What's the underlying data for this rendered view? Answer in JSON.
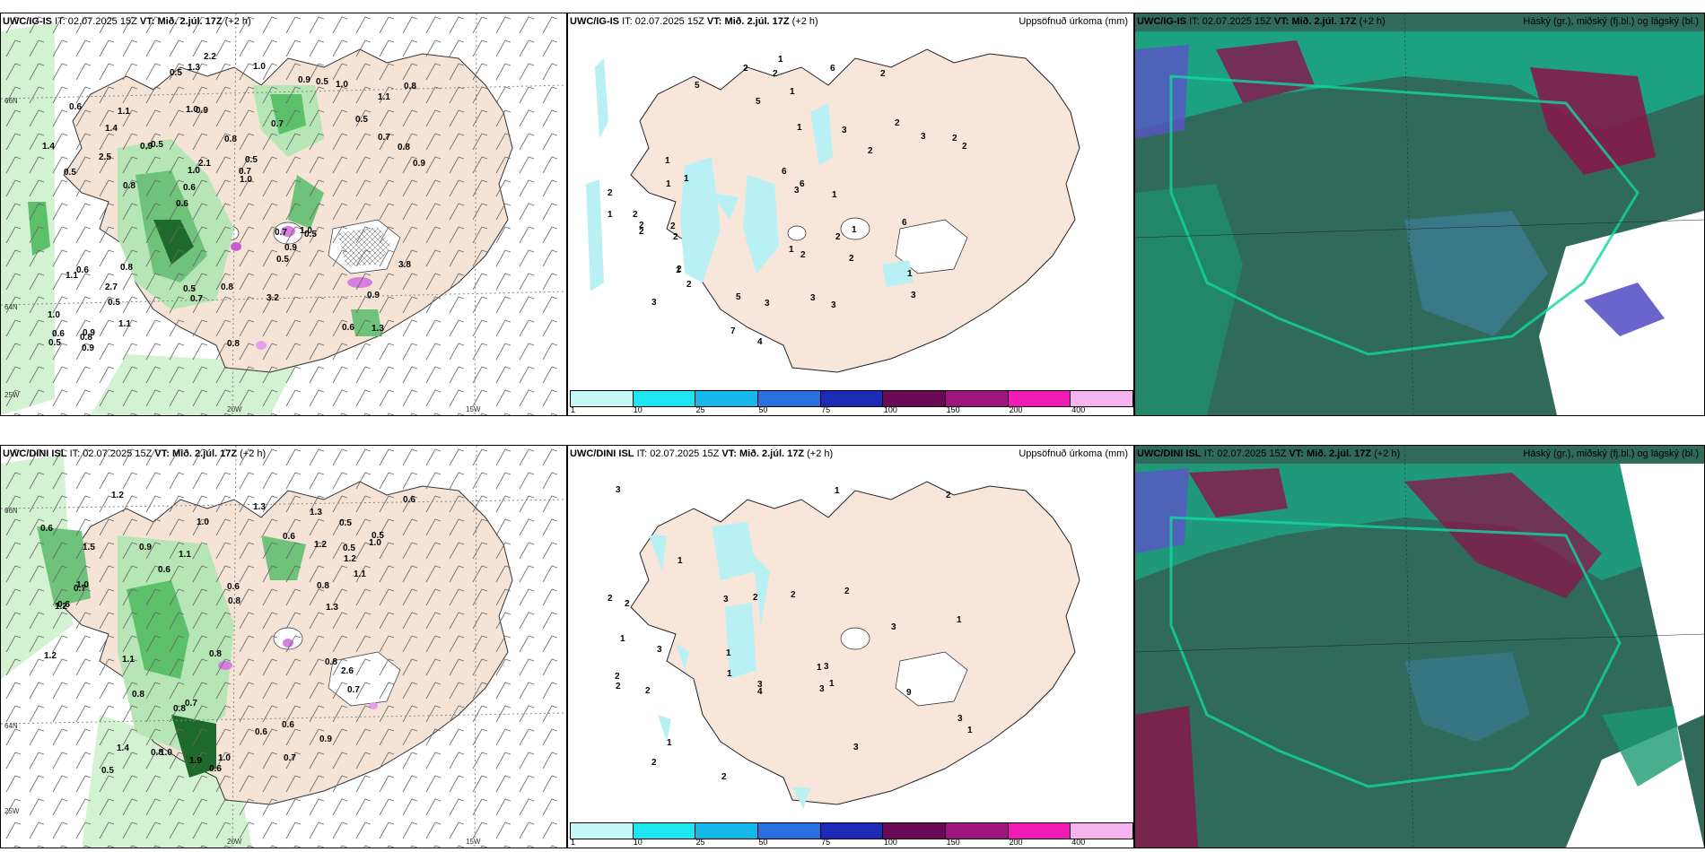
{
  "panels": [
    {
      "row": 0,
      "col": 0,
      "model": "UWC/IG-IS",
      "it_label": "IT:",
      "it_value": "02.07.2025 15Z",
      "vt_label": "VT:",
      "vt_value": "Mið. 2.júl. 17Z",
      "lead": "(+2 h)",
      "title": ""
    },
    {
      "row": 0,
      "col": 1,
      "model": "UWC/IG-IS",
      "it_label": "IT:",
      "it_value": "02.07.2025 15Z",
      "vt_label": "VT:",
      "vt_value": "Mið. 2.júl. 17Z",
      "lead": "(+2 h)",
      "title": "Uppsöfnuð úrkoma (mm)"
    },
    {
      "row": 0,
      "col": 2,
      "model": "UWC/IG-IS",
      "it_label": "IT:",
      "it_value": "02.07.2025 15Z",
      "vt_label": "VT:",
      "vt_value": "Mið. 2.júl. 17Z",
      "lead": "(+2 h)",
      "title": "Háský (gr.), miðský (fj.bl.) og lágský (bl.)"
    },
    {
      "row": 1,
      "col": 0,
      "model": "UWC/DINI ISL",
      "it_label": "IT:",
      "it_value": "02.07.2025 15Z",
      "vt_label": "VT:",
      "vt_value": "Mið. 2.júl. 17Z",
      "lead": "(+2 h)",
      "title": ""
    },
    {
      "row": 1,
      "col": 1,
      "model": "UWC/DINI ISL",
      "it_label": "IT:",
      "it_value": "02.07.2025 15Z",
      "vt_label": "VT:",
      "vt_value": "Mið. 2.júl. 17Z",
      "lead": "(+2 h)",
      "title": "Uppsöfnuð úrkoma (mm)"
    },
    {
      "row": 1,
      "col": 2,
      "model": "UWC/DINI ISL",
      "it_label": "IT:",
      "it_value": "02.07.2025 15Z",
      "vt_label": "VT:",
      "vt_value": "Mið. 2.júl. 17Z",
      "lead": "(+2 h)",
      "title": "Háský (gr.), miðský (fj.bl.) og lágský (bl.)"
    }
  ],
  "axis_labels": {
    "lat_66": "66N",
    "lat_64": "64N",
    "lon_25": "25W",
    "lon_20": "20W",
    "lon_15": "15W"
  },
  "colorbar": {
    "colors": [
      "#c6f7f7",
      "#1ee6f0",
      "#14b9ea",
      "#2a6fe0",
      "#1b2bb8",
      "#6a0a55",
      "#a01480",
      "#f01ab4",
      "#f5b4f0"
    ],
    "ticks": [
      "1",
      "10",
      "25",
      "50",
      "75",
      "100",
      "150",
      "200",
      "400"
    ]
  },
  "map_colors": {
    "land": "#f5e3d6",
    "precip_light": "#c8f0c8",
    "precip_mid": "#5cbf6a",
    "precip_dark": "#1e6a2c",
    "cloud_low": "#2f6a5a",
    "cloud_mid": "#10c89a",
    "cloud_high": "#8a1448"
  },
  "station_values": {
    "wind_row0": [
      "1.3",
      "0.5",
      "1.1",
      "0.6",
      "0.7",
      "0.9",
      "1.0",
      "0.8",
      "0.6",
      "0.5",
      "1.0",
      "0.5",
      "0.9",
      "0.5",
      "0.5",
      "0.6",
      "1.3",
      "0.9",
      "0.7",
      "0.7",
      "0.6",
      "0.5",
      "1.0",
      "1.1",
      "0.9",
      "0.8",
      "0.6",
      "0.9",
      "1.0",
      "0.8",
      "0.9",
      "2.5",
      "0.5",
      "1.1",
      "0.8",
      "0.7",
      "0.6",
      "0.7",
      "1.0",
      "1.1",
      "0.5",
      "0.8",
      "0.9",
      "3.2",
      "2.7",
      "0.9",
      "0.5",
      "0.8",
      "1.0",
      "2.2",
      "0.8",
      "1.4",
      "1.4",
      "0.5",
      "0.8",
      "1.0",
      "0.5",
      "2.1",
      "3.8"
    ],
    "wind_row1": [
      "0.8",
      "0.7",
      "1.3",
      "0.5",
      "1.0",
      "0.8",
      "0.6",
      "0.5",
      "0.6",
      "0.7",
      "1.5",
      "1.2",
      "1.0",
      "0.8",
      "1.0",
      "0.7",
      "1.1",
      "1.2",
      "0.9",
      "0.8",
      "1.2",
      "0.6",
      "1.9",
      "0.7",
      "0.8",
      "1.0",
      "1.1",
      "0.6",
      "1.0",
      "0.5",
      "1.2",
      "0.9",
      "0.6",
      "1.3",
      "0.6",
      "0.6",
      "2.6",
      "0.5",
      "1.3",
      "0.8",
      "0.6",
      "0.6",
      "1.2",
      "0.8",
      "1.1",
      "1.4"
    ],
    "precip_row0": [
      "3",
      "2",
      "5",
      "2",
      "2",
      "1",
      "2",
      "2",
      "3",
      "2",
      "2",
      "1",
      "2",
      "3",
      "4",
      "2",
      "3",
      "2",
      "1",
      "7",
      "3",
      "2",
      "5",
      "6",
      "6",
      "5",
      "2",
      "6",
      "1",
      "1",
      "1",
      "2",
      "3",
      "1",
      "1",
      "2",
      "2",
      "1",
      "3",
      "6",
      "2",
      "1",
      "3",
      "2",
      "1",
      "1",
      "2"
    ],
    "precip_row1": [
      "1",
      "2",
      "2",
      "3",
      "1",
      "2",
      "3",
      "3",
      "3",
      "2",
      "1",
      "2",
      "2",
      "3",
      "9",
      "3",
      "2",
      "2",
      "2",
      "1",
      "2",
      "1",
      "4",
      "2",
      "3",
      "1",
      "3",
      "1",
      "3",
      "1",
      "1",
      "1"
    ]
  }
}
